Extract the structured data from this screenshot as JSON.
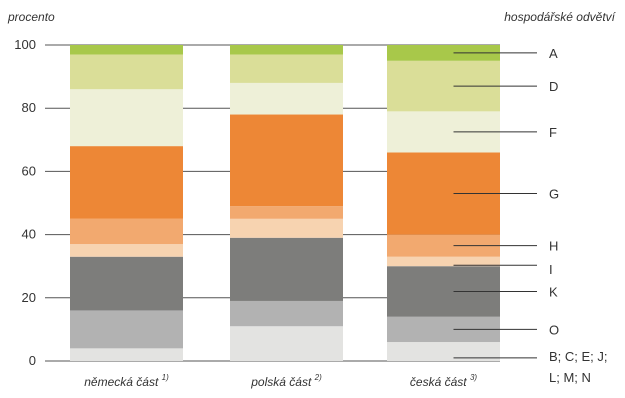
{
  "chart_data": {
    "type": "bar",
    "stacked": true,
    "ylabel": "procento",
    "legend_title": "hospodářské odvětví",
    "ylim": [
      0,
      100
    ],
    "yticks": [
      0,
      20,
      40,
      60,
      80,
      100
    ],
    "grid": "horizontal",
    "legend_placement": "right",
    "categories": [
      {
        "label": "německá část",
        "note": "1)"
      },
      {
        "label": "polská část",
        "note": "2)"
      },
      {
        "label": "česká část",
        "note": "3)"
      }
    ],
    "series": [
      {
        "name": "B; C; E; J; L; M; N",
        "label_lines": [
          "B; C; E; J;",
          "L; M; N"
        ],
        "color": "#e3e3e1",
        "values": [
          4,
          11,
          6
        ]
      },
      {
        "name": "O",
        "color": "#b2b2b2",
        "values": [
          12,
          8,
          8
        ]
      },
      {
        "name": "K",
        "color": "#7d7d7b",
        "values": [
          17,
          20,
          16
        ]
      },
      {
        "name": "I",
        "color": "#f7d3b0",
        "values": [
          4,
          6,
          3
        ]
      },
      {
        "name": "H",
        "color": "#f2a96f",
        "values": [
          8,
          4,
          7
        ]
      },
      {
        "name": "G",
        "color": "#ed8736",
        "values": [
          23,
          29,
          26
        ]
      },
      {
        "name": "F",
        "color": "#eef0d8",
        "values": [
          18,
          10,
          13
        ]
      },
      {
        "name": "D",
        "color": "#dade98",
        "values": [
          11,
          9,
          16
        ]
      },
      {
        "name": "A",
        "color": "#a8c84a",
        "values": [
          3,
          3,
          5
        ]
      }
    ]
  }
}
